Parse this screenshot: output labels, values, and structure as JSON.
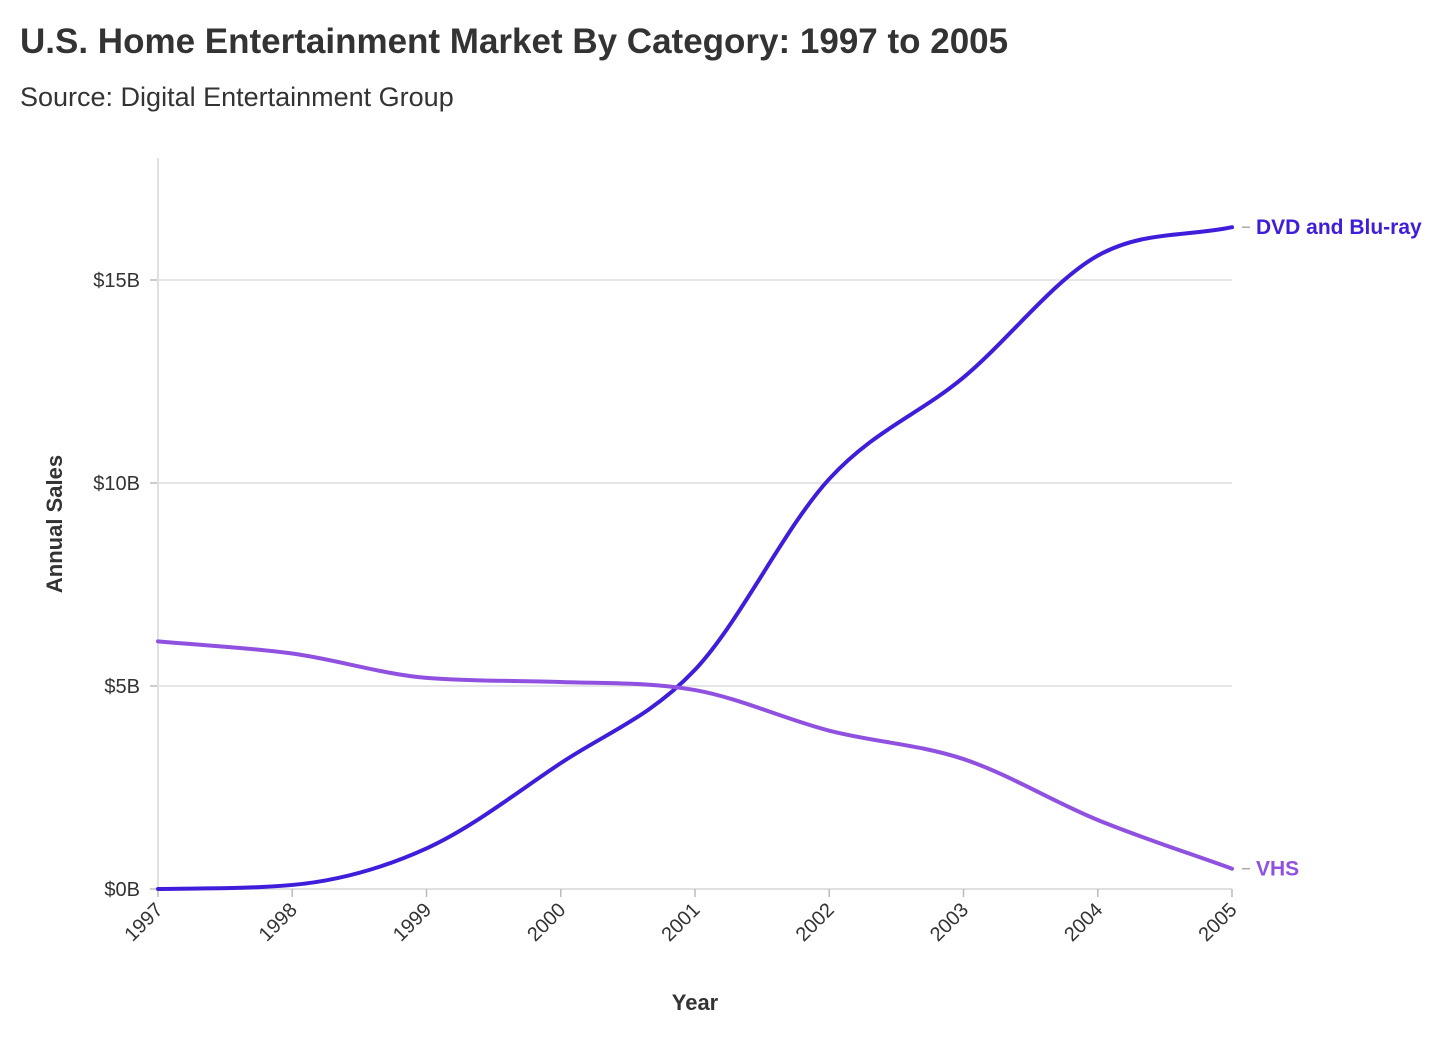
{
  "chart_data": {
    "type": "line",
    "title": "U.S. Home Entertainment Market By Category: 1997 to 2005",
    "subtitle": "Source: Digital Entertainment Group",
    "xlabel": "Year",
    "ylabel": "Annual Sales",
    "x": [
      1997,
      1998,
      1999,
      2000,
      2001,
      2002,
      2003,
      2004,
      2005
    ],
    "ylim": [
      0,
      17
    ],
    "yticks": [
      {
        "value": 0,
        "label": "$0B"
      },
      {
        "value": 5,
        "label": "$5B"
      },
      {
        "value": 10,
        "label": "$10B"
      },
      {
        "value": 15,
        "label": "$15B"
      }
    ],
    "xtick_labels": [
      "1997",
      "1998",
      "1999",
      "2000",
      "2001",
      "2002",
      "2003",
      "2004",
      "2005"
    ],
    "grid": true,
    "legend": "direct labels at line ends",
    "series": [
      {
        "name": "DVD and Blu-ray",
        "color": "#3f1ddb",
        "values": [
          0.0,
          0.1,
          1.0,
          3.1,
          5.4,
          10.1,
          12.6,
          15.6,
          16.3
        ]
      },
      {
        "name": "VHS",
        "color": "#9151e0",
        "values": [
          6.1,
          5.8,
          5.2,
          5.1,
          4.9,
          3.9,
          3.2,
          1.7,
          0.5
        ]
      }
    ]
  }
}
